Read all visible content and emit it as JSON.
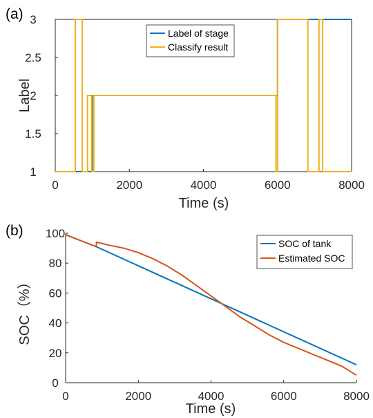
{
  "chart_data": [
    {
      "panel": "(a)",
      "type": "line",
      "xlabel": "Time (s)",
      "ylabel": "Label",
      "xlim": [
        0,
        8000
      ],
      "ylim": [
        1,
        3
      ],
      "xticks": [
        "0",
        "2000",
        "4000",
        "6000",
        "8000"
      ],
      "yticks": [
        "1",
        "1.5",
        "2",
        "2.5",
        "3"
      ],
      "grid": false,
      "legend": "top-center",
      "series": [
        {
          "name": "Label of stage",
          "color": "#0072BD",
          "step": true,
          "points": [
            [
              0,
              1
            ],
            [
              1000,
              1
            ],
            [
              1000,
              2
            ],
            [
              6000,
              2
            ],
            [
              6000,
              3
            ],
            [
              8000,
              3
            ]
          ]
        },
        {
          "name": "Classify result",
          "color": "#EDB120",
          "step": true,
          "points": [
            [
              0,
              1
            ],
            [
              540,
              1
            ],
            [
              540,
              3
            ],
            [
              730,
              3
            ],
            [
              730,
              1
            ],
            [
              870,
              1
            ],
            [
              870,
              2
            ],
            [
              980,
              2
            ],
            [
              980,
              1
            ],
            [
              1040,
              1
            ],
            [
              1040,
              2
            ],
            [
              5960,
              2
            ],
            [
              5960,
              1
            ],
            [
              6000,
              1
            ],
            [
              6000,
              3
            ],
            [
              6820,
              3
            ],
            [
              6820,
              1
            ],
            [
              7120,
              1
            ],
            [
              7120,
              3
            ],
            [
              7220,
              3
            ],
            [
              7220,
              1
            ],
            [
              8000,
              1
            ]
          ]
        }
      ]
    },
    {
      "panel": "(b)",
      "type": "line",
      "xlabel": "Time (s)",
      "ylabel": "SOC（%）",
      "xlim": [
        0,
        8000
      ],
      "ylim": [
        0,
        100
      ],
      "xticks": [
        "0",
        "2000",
        "4000",
        "6000",
        "8000"
      ],
      "yticks": [
        "0",
        "20",
        "40",
        "60",
        "80",
        "100"
      ],
      "grid": false,
      "legend": "top-right",
      "series": [
        {
          "name": "SOC of tank",
          "color": "#0072BD",
          "points": [
            [
              0,
              99
            ],
            [
              840,
              91
            ],
            [
              8000,
              12
            ]
          ]
        },
        {
          "name": "Estimated SOC",
          "color": "#D95319",
          "points": [
            [
              0,
              99
            ],
            [
              840,
              91
            ],
            [
              850,
              94
            ],
            [
              1200,
              92
            ],
            [
              1600,
              90
            ],
            [
              2000,
              87
            ],
            [
              2400,
              83
            ],
            [
              2800,
              78
            ],
            [
              3200,
              72
            ],
            [
              3600,
              65
            ],
            [
              4000,
              58
            ],
            [
              4400,
              51
            ],
            [
              4800,
              44
            ],
            [
              5200,
              38
            ],
            [
              5600,
              32
            ],
            [
              6000,
              27
            ],
            [
              6400,
              23
            ],
            [
              6800,
              19
            ],
            [
              7200,
              15
            ],
            [
              7600,
              11
            ],
            [
              8000,
              5
            ]
          ]
        }
      ]
    }
  ]
}
